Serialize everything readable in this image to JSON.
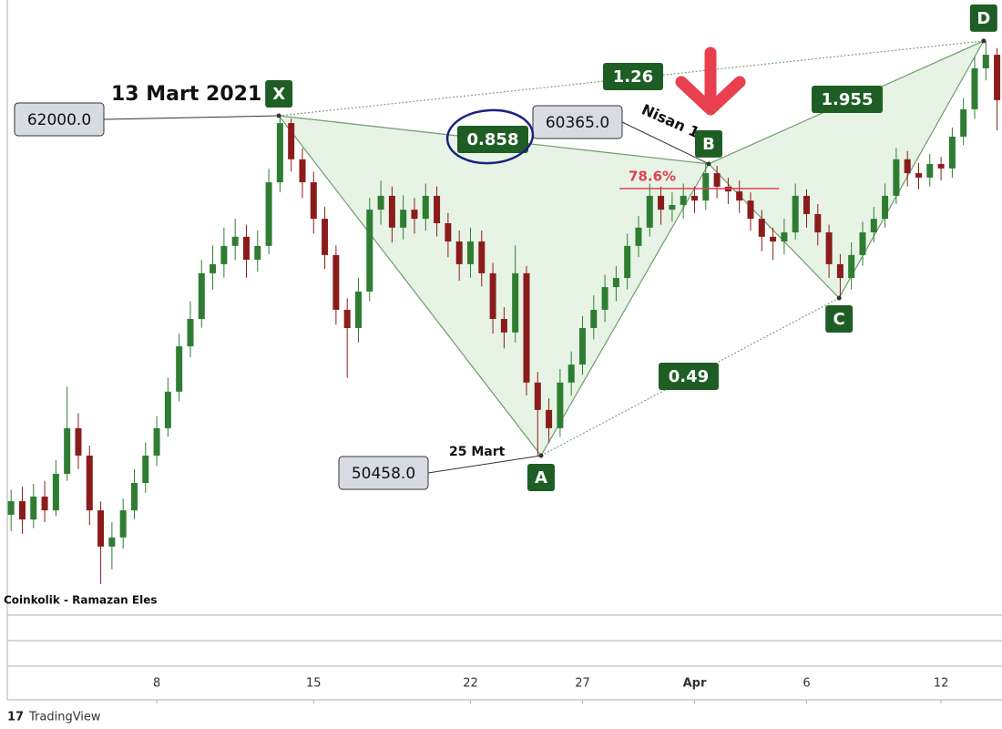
{
  "chart_data": {
    "type": "candlestick",
    "x": [
      0.5,
      1,
      1.5,
      2,
      2.5,
      3,
      3.5,
      4,
      4.5,
      5,
      5.5,
      6,
      6.5,
      7,
      7.5,
      8,
      8.5,
      9,
      9.5,
      10,
      10.5,
      11,
      11.5,
      12,
      12.5,
      13,
      13.5,
      14,
      14.5,
      15,
      15.5,
      16,
      16.5,
      17,
      17.5,
      18,
      18.5,
      19,
      19.5,
      20,
      20.5,
      21,
      21.5,
      22,
      22.5,
      23,
      23.5,
      24,
      24.5,
      25,
      25.5,
      26,
      26.5,
      27,
      27.5,
      28,
      28.5,
      29,
      29.5,
      30,
      30.5,
      31,
      31.5,
      32,
      32.5,
      33,
      33.5,
      34,
      34.5,
      35,
      35.5,
      36,
      36.5,
      37,
      37.5,
      38,
      38.5,
      39,
      39.5,
      40,
      40.5,
      41,
      41.5,
      42,
      42.5,
      43,
      43.5,
      44,
      44.5
    ],
    "open": [
      48450,
      48910,
      48290,
      49070,
      48600,
      49840,
      51390,
      50460,
      48600,
      47370,
      47680,
      48600,
      49530,
      50460,
      51390,
      52630,
      54170,
      55100,
      56650,
      56960,
      57580,
      57890,
      57110,
      57580,
      59740,
      61750,
      60520,
      59740,
      58500,
      57270,
      55410,
      54790,
      56030,
      58810,
      59280,
      58200,
      58810,
      58500,
      59280,
      58350,
      57730,
      56960,
      57730,
      56650,
      55100,
      54640,
      56650,
      52940,
      52010,
      51390,
      52940,
      53550,
      54790,
      55410,
      56180,
      56490,
      57580,
      58200,
      59280,
      58810,
      58970,
      59280,
      59120,
      60050,
      59590,
      59430,
      59120,
      58500,
      57890,
      57730,
      58040,
      59280,
      58660,
      58040,
      56960,
      56490,
      57270,
      58040,
      58500,
      59280,
      60520,
      60050,
      59900,
      60360,
      60210,
      61290,
      62220,
      63610,
      64070
    ],
    "high": [
      49300,
      49400,
      49500,
      49600,
      50300,
      52800,
      51900,
      50800,
      48900,
      48200,
      49000,
      50000,
      50900,
      51800,
      53100,
      54600,
      55700,
      57100,
      57600,
      58200,
      58500,
      58300,
      58100,
      60200,
      62000,
      61900,
      60900,
      60100,
      58900,
      57600,
      55800,
      56500,
      59200,
      59800,
      59600,
      59300,
      59200,
      59700,
      59600,
      58700,
      58100,
      58200,
      58100,
      57000,
      55500,
      57600,
      56900,
      53300,
      52400,
      53400,
      54000,
      55200,
      55900,
      56600,
      56900,
      58000,
      58600,
      59700,
      59600,
      59400,
      59700,
      59600,
      60370,
      60300,
      59900,
      59800,
      59400,
      58800,
      58200,
      58500,
      59700,
      59500,
      59000,
      58300,
      57300,
      57700,
      58400,
      58900,
      59700,
      60900,
      60800,
      60400,
      60700,
      60600,
      61600,
      62600,
      64000,
      64540,
      64300
    ],
    "low": [
      47900,
      47800,
      48000,
      48200,
      48400,
      49600,
      50000,
      48100,
      46100,
      46600,
      47300,
      48300,
      49200,
      50100,
      51100,
      52300,
      53800,
      54800,
      56100,
      56500,
      57100,
      56500,
      56700,
      57300,
      59400,
      60100,
      59200,
      58000,
      56800,
      54900,
      53100,
      54300,
      55700,
      58300,
      57700,
      57800,
      58000,
      58100,
      57900,
      57200,
      56400,
      56500,
      56200,
      54600,
      54100,
      54300,
      52500,
      50460,
      50900,
      51100,
      52500,
      53200,
      54400,
      55000,
      55700,
      56100,
      57200,
      57900,
      58300,
      58400,
      58500,
      58700,
      58800,
      59200,
      59000,
      58700,
      58100,
      57400,
      57100,
      57300,
      57800,
      58200,
      57600,
      56500,
      55810,
      56100,
      56900,
      57700,
      58200,
      59000,
      59600,
      59500,
      59600,
      59800,
      59900,
      61000,
      61900,
      63200,
      61500
    ],
    "close": [
      48910,
      48290,
      49070,
      48600,
      49840,
      51390,
      50460,
      48600,
      47370,
      47680,
      48600,
      49530,
      50460,
      51390,
      52630,
      54170,
      55100,
      56650,
      56960,
      57580,
      57890,
      57110,
      57580,
      59740,
      61750,
      60520,
      59740,
      58500,
      57270,
      55410,
      54790,
      56030,
      58810,
      59280,
      58200,
      58810,
      58500,
      59280,
      58350,
      57730,
      56960,
      57730,
      56650,
      55100,
      54640,
      56650,
      52940,
      52010,
      51390,
      52940,
      53550,
      54790,
      55410,
      56180,
      56490,
      57580,
      58200,
      59280,
      58810,
      58970,
      59280,
      59120,
      60050,
      59590,
      59430,
      59120,
      58500,
      57890,
      57730,
      58040,
      59280,
      58660,
      58040,
      56960,
      56490,
      57270,
      58040,
      58500,
      59280,
      60520,
      60050,
      59900,
      60360,
      60210,
      61290,
      62220,
      63610,
      64070,
      62530
    ],
    "up_color": "#2e7d32",
    "down_color": "#8b1c1c",
    "xlim": [
      0.33,
      44.72
    ],
    "ylim": [
      45260,
      65930
    ],
    "xticks": [
      {
        "value": 7,
        "label": "8"
      },
      {
        "value": 14,
        "label": "15"
      },
      {
        "value": 21,
        "label": "22"
      },
      {
        "value": 26,
        "label": "27"
      },
      {
        "value": 31,
        "label": "Apr"
      },
      {
        "value": 36,
        "label": "6"
      },
      {
        "value": 42,
        "label": "12"
      }
    ],
    "pattern": {
      "points": [
        {
          "label": "X",
          "x": 12.45,
          "price": 62000,
          "price_label": "62000.0"
        },
        {
          "label": "A",
          "x": 24.15,
          "price": 50458,
          "price_label": "50458.0"
        },
        {
          "label": "B",
          "x": 31.63,
          "price": 60365,
          "price_label": "60365.0"
        },
        {
          "label": "C",
          "x": 37.45,
          "price": 55810
        },
        {
          "label": "D",
          "x": 43.9,
          "price": 64540
        }
      ],
      "ratios": [
        0.858,
        1.26,
        1.955,
        0.49
      ],
      "fib_level": {
        "label": "78.6%",
        "price": 59530,
        "x": [
          27.65,
          34.77
        ]
      }
    },
    "annotations": [
      "13 Mart 2021",
      "25 Mart",
      "Nisan 1"
    ],
    "watermark": "Coinkolik - Ramazan Eles"
  },
  "footer": {
    "brand": "TradingView"
  }
}
